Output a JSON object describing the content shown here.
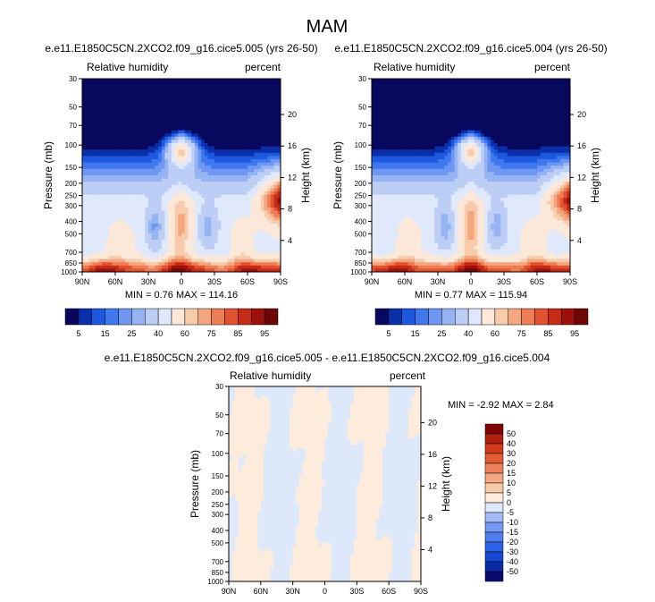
{
  "title": "MAM",
  "colors": {
    "abs_levels": [
      "#08085e",
      "#0a2fa8",
      "#1c58e0",
      "#3f78ee",
      "#6f97f2",
      "#96b3f4",
      "#bccdf6",
      "#dfe9fb",
      "#fbe8d8",
      "#f8cbad",
      "#f4a77f",
      "#ee7c55",
      "#e2522e",
      "#c52b17",
      "#9c120a",
      "#6e0606"
    ],
    "diff_levels": [
      "#0a0a6e",
      "#0a2aa8",
      "#1646d2",
      "#2b62e6",
      "#4f7eee",
      "#7799f2",
      "#a5bdf6",
      "#dde9fb",
      "#fdebdc",
      "#f8caa6",
      "#f5a780",
      "#ee8159",
      "#e65a34",
      "#d23a1b",
      "#b0200f",
      "#800606"
    ],
    "diff_fill_neg": "#dde9fb",
    "diff_fill_pos": "#fdebdc"
  },
  "chart_data": [
    {
      "type": "heatmap",
      "name": "case1",
      "title": "e.e11.E1850C5CN.2XCO2.f09_g16.cice5.005 (yrs 26-50)",
      "left_label": "Relative humidity",
      "right_label": "percent",
      "ylabel": "Pressure (mb)",
      "y2label": "Height (km)",
      "x_ticks": [
        "90N",
        "60N",
        "30N",
        "0",
        "30S",
        "60S",
        "90S"
      ],
      "x_values": [
        90,
        60,
        30,
        0,
        -30,
        -60,
        -90
      ],
      "y_ticks": [
        "30",
        "50",
        "70",
        "100",
        "150",
        "200",
        "250",
        "300",
        "400",
        "500",
        "700",
        "850",
        "1000"
      ],
      "y_values": [
        30,
        50,
        70,
        100,
        150,
        200,
        250,
        300,
        400,
        500,
        700,
        850,
        1000
      ],
      "y2_ticks": [
        "20",
        "16",
        "12",
        "8",
        "4"
      ],
      "y2_values": [
        20,
        16,
        12,
        8,
        4
      ],
      "stats": "MIN =   0.76   MAX = 114.16",
      "min": 0.76,
      "max": 114.16,
      "variant": 0
    },
    {
      "type": "heatmap",
      "name": "case2",
      "title": "e.e11.E1850C5CN.2XCO2.f09_g16.cice5.004 (yrs 26-50)",
      "left_label": "Relative humidity",
      "right_label": "percent",
      "ylabel": "Pressure (mb)",
      "y2label": "Height (km)",
      "x_ticks": [
        "90N",
        "60N",
        "30N",
        "0",
        "30S",
        "60S",
        "90S"
      ],
      "x_values": [
        90,
        60,
        30,
        0,
        -30,
        -60,
        -90
      ],
      "y_ticks": [
        "30",
        "50",
        "70",
        "100",
        "150",
        "200",
        "250",
        "300",
        "400",
        "500",
        "700",
        "850",
        "1000"
      ],
      "y_values": [
        30,
        50,
        70,
        100,
        150,
        200,
        250,
        300,
        400,
        500,
        700,
        850,
        1000
      ],
      "y2_ticks": [
        "20",
        "16",
        "12",
        "8",
        "4"
      ],
      "y2_values": [
        20,
        16,
        12,
        8,
        4
      ],
      "stats": "MIN =   0.77   MAX = 115.94",
      "min": 0.77,
      "max": 115.94,
      "variant": 1
    },
    {
      "type": "heatmap",
      "name": "difference",
      "title": "e.e11.E1850C5CN.2XCO2.f09_g16.cice5.005 - e.e11.E1850C5CN.2XCO2.f09_g16.cice5.004",
      "left_label": "Relative humidity",
      "right_label": "percent",
      "ylabel": "Pressure (mb)",
      "y2label": "Height (km)",
      "x_ticks": [
        "90N",
        "60N",
        "30N",
        "0",
        "30S",
        "60S",
        "90S"
      ],
      "x_values": [
        90,
        60,
        30,
        0,
        -30,
        -60,
        -90
      ],
      "y_ticks": [
        "30",
        "50",
        "70",
        "100",
        "150",
        "200",
        "250",
        "300",
        "400",
        "500",
        "700",
        "850",
        "1000"
      ],
      "y_values": [
        30,
        50,
        70,
        100,
        150,
        200,
        250,
        300,
        400,
        500,
        700,
        850,
        1000
      ],
      "y2_ticks": [
        "20",
        "16",
        "12",
        "8",
        "4"
      ],
      "y2_values": [
        20,
        16,
        12,
        8,
        4
      ],
      "stats": "MIN =  -2.92   MAX =   2.84",
      "min": -2.92,
      "max": 2.84
    }
  ],
  "colorbars": {
    "abs": {
      "labels": [
        "5",
        "15",
        "25",
        "40",
        "60",
        "75",
        "85",
        "95"
      ],
      "levels": [
        5,
        10,
        15,
        20,
        25,
        30,
        40,
        50,
        60,
        65,
        70,
        75,
        80,
        85,
        90,
        95
      ]
    },
    "diff": {
      "labels": [
        "50",
        "40",
        "30",
        "20",
        "15",
        "10",
        "5",
        "0",
        "-5",
        "-10",
        "-15",
        "-20",
        "-30",
        "-40",
        "-50"
      ]
    }
  }
}
